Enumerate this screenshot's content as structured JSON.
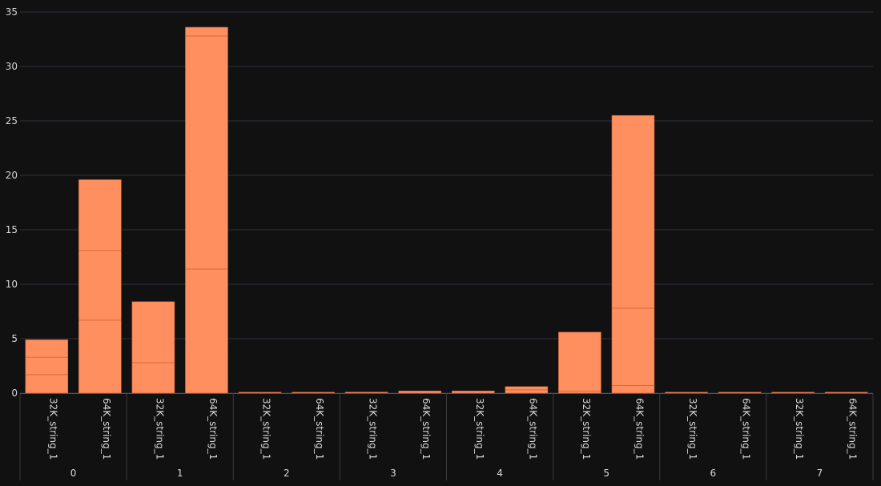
{
  "chart_data": {
    "type": "bar",
    "stacked": true,
    "ylim": [
      0,
      35
    ],
    "yticks": [
      0,
      5,
      10,
      15,
      20,
      25,
      30,
      35
    ],
    "grid": true,
    "bar_color": "#ff8f5e",
    "segment_line_color": "#c45c38",
    "background": "#111111",
    "grid_color": "#2e2e3a",
    "groups": [
      {
        "label": "0",
        "bars": [
          {
            "label": "32K_string_1",
            "segments": [
              1.7,
              1.6,
              1.6
            ]
          },
          {
            "label": "64K_string_1",
            "segments": [
              6.7,
              6.4,
              6.5
            ]
          }
        ]
      },
      {
        "label": "1",
        "bars": [
          {
            "label": "32K_string_1",
            "segments": [
              2.8,
              5.6
            ]
          },
          {
            "label": "64K_string_1",
            "segments": [
              11.4,
              21.4,
              0.8
            ]
          }
        ]
      },
      {
        "label": "2",
        "bars": [
          {
            "label": "32K_string_1",
            "segments": [
              0.05
            ]
          },
          {
            "label": "64K_string_1",
            "segments": [
              0.05
            ]
          }
        ]
      },
      {
        "label": "3",
        "bars": [
          {
            "label": "32K_string_1",
            "segments": [
              0.1
            ]
          },
          {
            "label": "64K_string_1",
            "segments": [
              0.2
            ]
          }
        ]
      },
      {
        "label": "4",
        "bars": [
          {
            "label": "32K_string_1",
            "segments": [
              0.2
            ]
          },
          {
            "label": "64K_string_1",
            "segments": [
              0.3,
              0.3
            ]
          }
        ]
      },
      {
        "label": "5",
        "bars": [
          {
            "label": "32K_string_1",
            "segments": [
              0.2,
              5.4
            ]
          },
          {
            "label": "64K_string_1",
            "segments": [
              0.7,
              7.1,
              17.7
            ]
          }
        ]
      },
      {
        "label": "6",
        "bars": [
          {
            "label": "32K_string_1",
            "segments": [
              0.05
            ]
          },
          {
            "label": "64K_string_1",
            "segments": [
              0.05
            ]
          }
        ]
      },
      {
        "label": "7",
        "bars": [
          {
            "label": "32K_string_1",
            "segments": [
              0.05
            ]
          },
          {
            "label": "64K_string_1",
            "segments": [
              0.05
            ]
          }
        ]
      }
    ]
  }
}
